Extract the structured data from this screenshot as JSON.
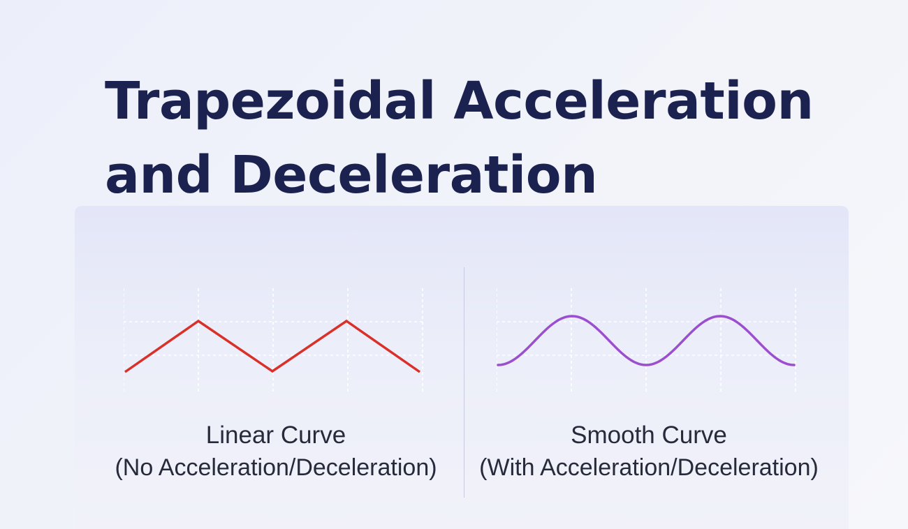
{
  "title": {
    "line1": "Trapezoidal Acceleration",
    "line2": "and Deceleration"
  },
  "left_panel": {
    "name": "Linear Curve",
    "subtitle": "(No Acceleration/Deceleration)",
    "curve_color": "#d9302a",
    "curve_shape": "zigzag",
    "peaks": 2
  },
  "right_panel": {
    "name": "Smooth Curve",
    "subtitle": "(With Acceleration/Deceleration)",
    "curve_color": "#9b4fcf",
    "curve_shape": "sine",
    "peaks": 2
  },
  "grid_color": "#ffffff"
}
